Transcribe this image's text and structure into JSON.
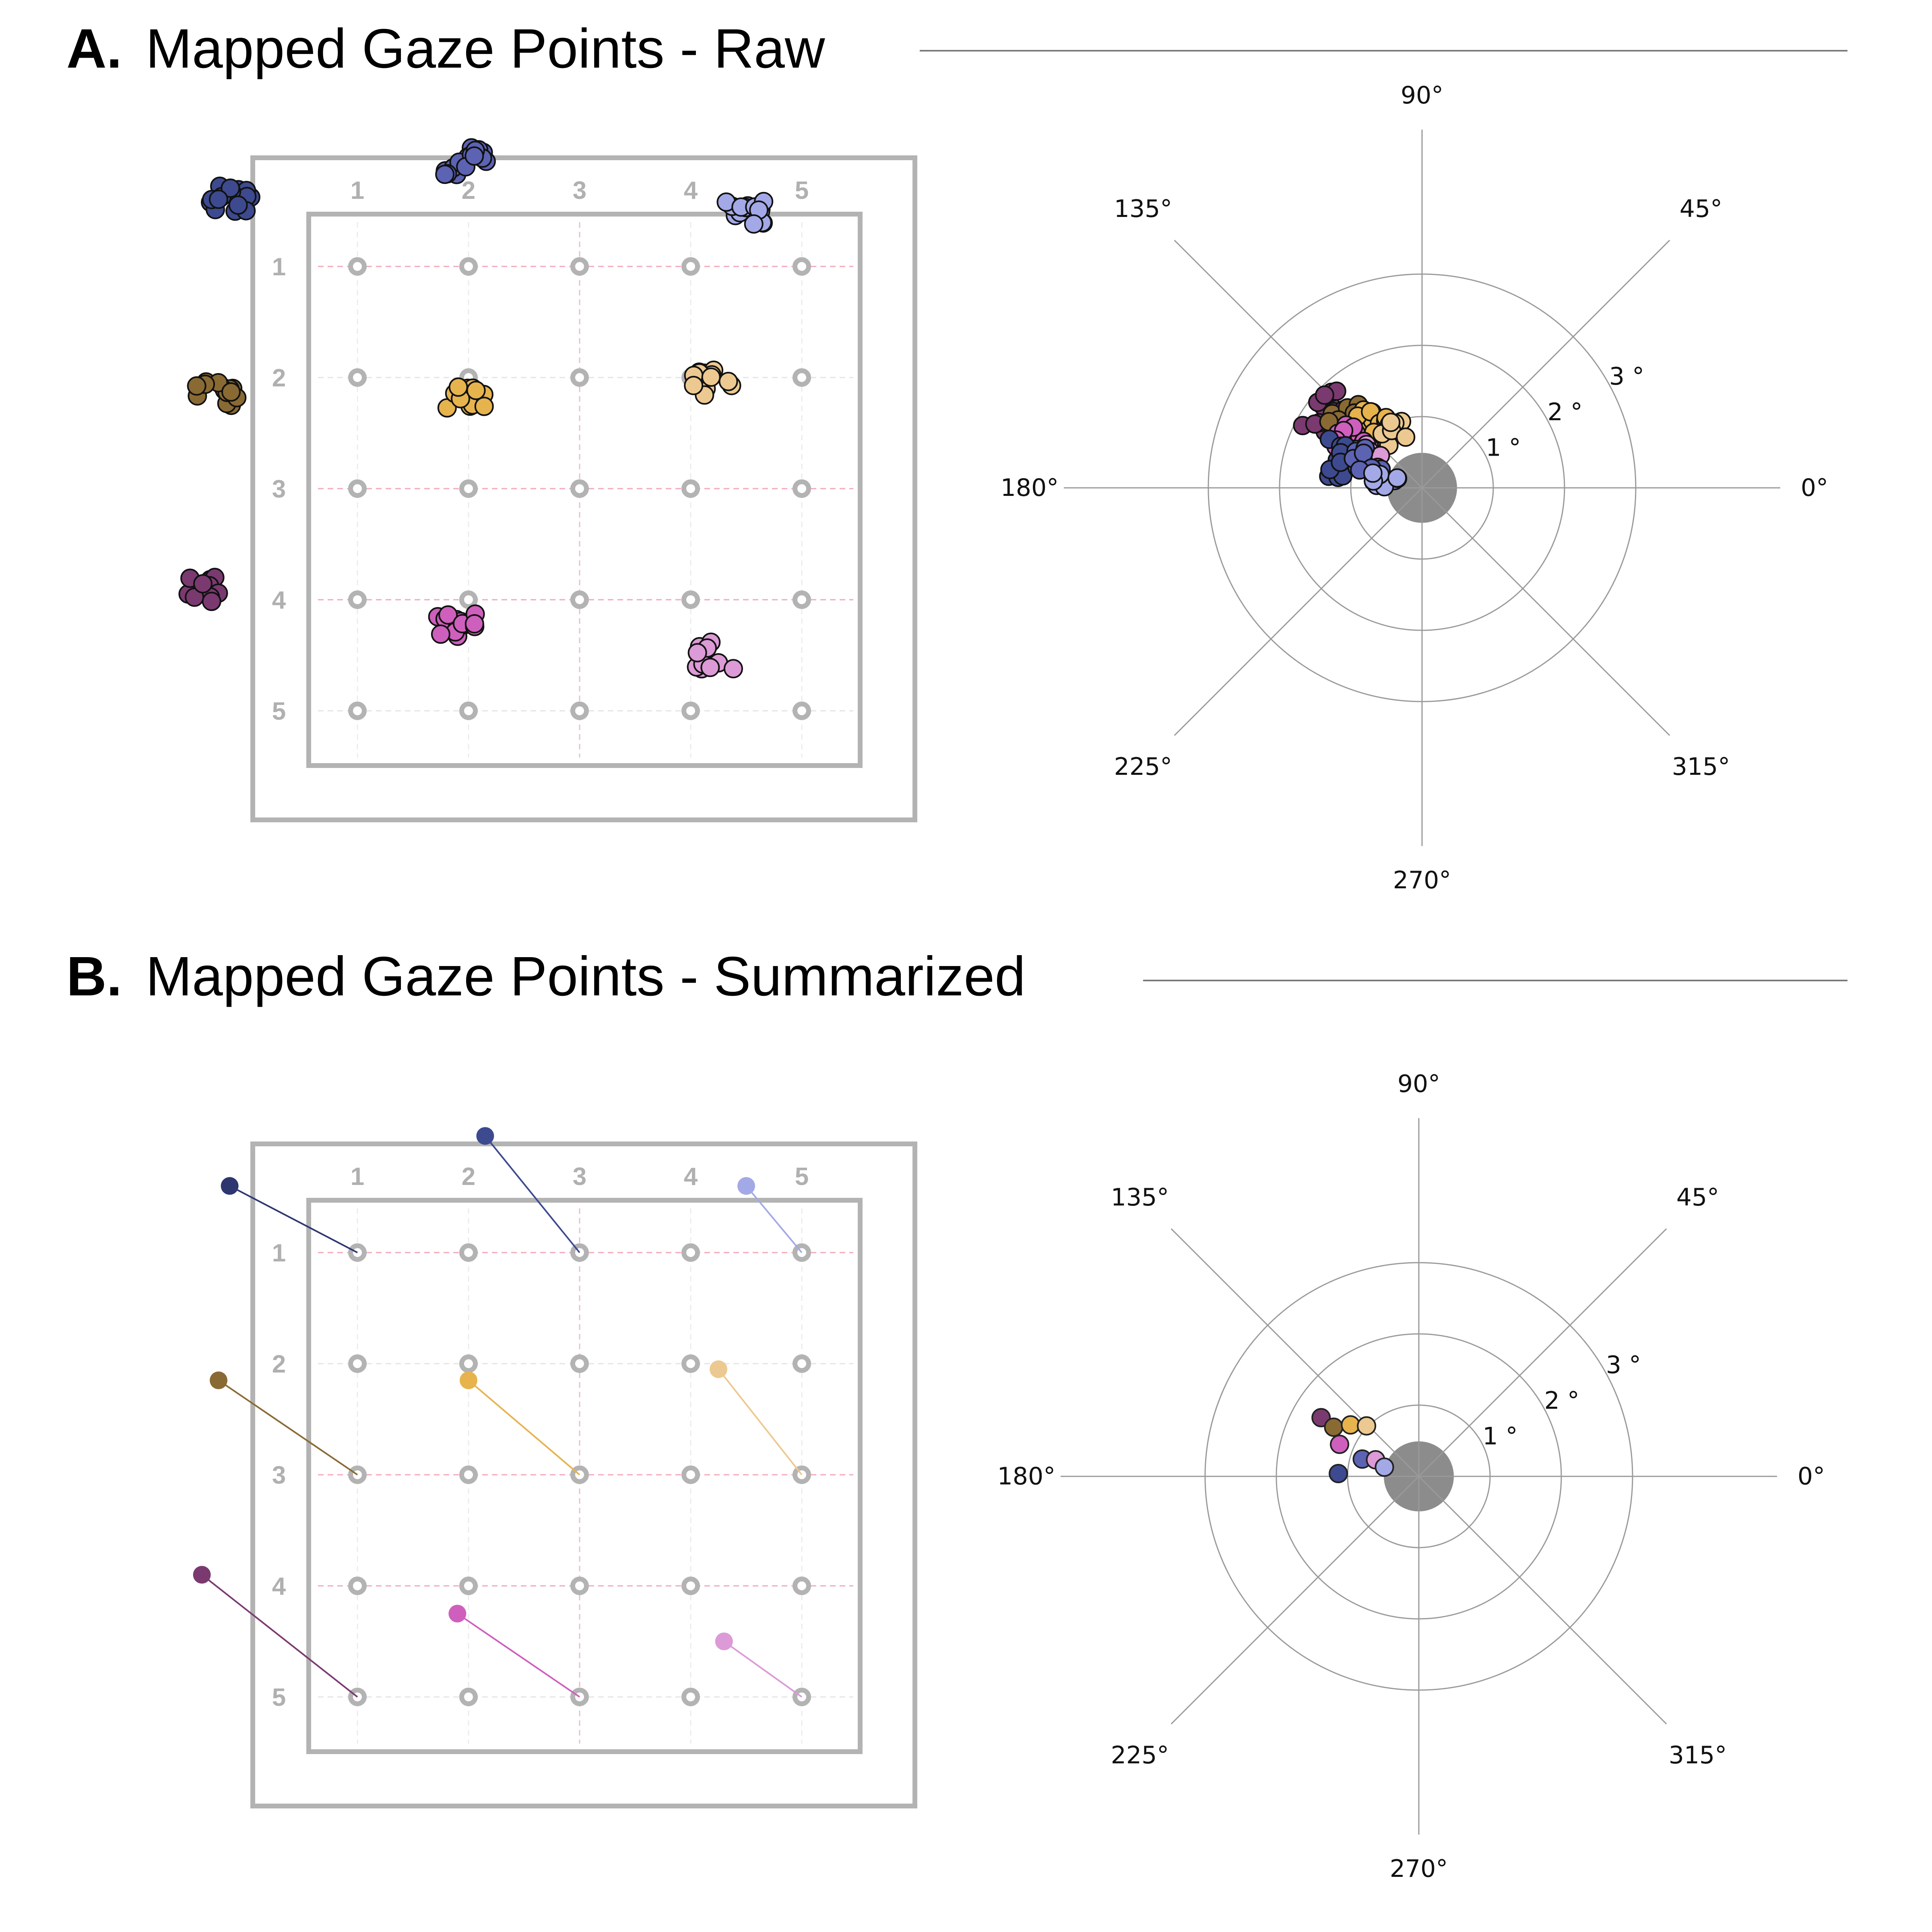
{
  "panels": [
    {
      "letter": "A.",
      "title": "Mapped Gaze Points - Raw",
      "mode": "raw"
    },
    {
      "letter": "B.",
      "title": "Mapped Gaze Points - Summarized",
      "mode": "summarized"
    }
  ],
  "grid": {
    "column_labels": [
      "1",
      "2",
      "3",
      "4",
      "5"
    ],
    "row_labels": [
      "1",
      "2",
      "3",
      "4",
      "5"
    ]
  },
  "polar": {
    "angle_labels": [
      "0°",
      "45°",
      "90°",
      "135°",
      "180°",
      "225°",
      "270°",
      "315°"
    ],
    "angles_deg": [
      0,
      45,
      90,
      135,
      180,
      225,
      270,
      315
    ],
    "ring_labels": [
      "1 °",
      "2 °",
      "3 °"
    ],
    "ring_values": [
      1,
      2,
      3
    ]
  },
  "colors": {
    "frame": "#b3b3b3",
    "target": "#b3b3b3",
    "guide": "#f4a7b9",
    "polar_center": "#8c8c8c",
    "polar_axis": "#9a9a9a"
  },
  "chart_data": [
    {
      "type": "scatter",
      "panel": "A",
      "title": "Mapped Gaze Points - Raw",
      "grid_units": "target grid (columns 1-5, rows 1-5)",
      "xlim": [
        0.05,
        5.55
      ],
      "ylim": [
        0.1,
        5.5
      ],
      "clusters": [
        {
          "color": "#3d4a8f",
          "target": [
            1,
            1
          ],
          "center": [
            -0.15,
            0.4
          ],
          "n": 16
        },
        {
          "color": "#5c63b3",
          "target": [
            3,
            1
          ],
          "center": [
            1.98,
            0.05
          ],
          "n": 16
        },
        {
          "color": "#a3a9e6",
          "target": [
            5,
            1
          ],
          "center": [
            4.5,
            0.5
          ],
          "n": 16
        },
        {
          "color": "#8a6a33",
          "target": [
            1,
            3
          ],
          "center": [
            -0.28,
            2.15
          ],
          "n": 14
        },
        {
          "color": "#e6b34d",
          "target": [
            3,
            3
          ],
          "center": [
            2.0,
            2.15
          ],
          "n": 14
        },
        {
          "color": "#ecc990",
          "target": [
            5,
            3
          ],
          "center": [
            4.2,
            2.05
          ],
          "n": 14
        },
        {
          "color": "#7a3a70",
          "target": [
            1,
            5
          ],
          "center": [
            -0.45,
            3.9
          ],
          "n": 14
        },
        {
          "color": "#cf5fbd",
          "target": [
            3,
            5
          ],
          "center": [
            1.92,
            4.25
          ],
          "n": 14
        },
        {
          "color": "#dc9ad6",
          "target": [
            5,
            5
          ],
          "center": [
            4.25,
            4.5
          ],
          "n": 14
        }
      ],
      "polar_clusters": [
        {
          "color": "#7a3a70",
          "angle_deg": 142,
          "ecc_deg": 1.7
        },
        {
          "color": "#8a6a33",
          "angle_deg": 138,
          "ecc_deg": 1.45
        },
        {
          "color": "#e6b34d",
          "angle_deg": 128,
          "ecc_deg": 1.15
        },
        {
          "color": "#ecc990",
          "angle_deg": 118,
          "ecc_deg": 0.95
        },
        {
          "color": "#cf5fbd",
          "angle_deg": 145,
          "ecc_deg": 1.2
        },
        {
          "color": "#dc9ad6",
          "angle_deg": 150,
          "ecc_deg": 0.9
        },
        {
          "color": "#3d4a8f",
          "angle_deg": 162,
          "ecc_deg": 1.25
        },
        {
          "color": "#5c63b3",
          "angle_deg": 155,
          "ecc_deg": 0.85
        },
        {
          "color": "#a3a9e6",
          "angle_deg": 168,
          "ecc_deg": 0.55
        }
      ]
    },
    {
      "type": "scatter",
      "panel": "B",
      "title": "Mapped Gaze Points - Summarized",
      "grid_units": "target grid (columns 1-5, rows 1-5)",
      "points": [
        {
          "color": "#2e3670",
          "x": -0.15,
          "y": 0.4,
          "target": [
            1,
            1
          ]
        },
        {
          "color": "#3d4a8f",
          "x": 2.15,
          "y": -0.05,
          "target": [
            3,
            1
          ]
        },
        {
          "color": "#a3a9e6",
          "x": 4.5,
          "y": 0.4,
          "target": [
            5,
            1
          ]
        },
        {
          "color": "#8a6a33",
          "x": -0.25,
          "y": 2.15,
          "target": [
            1,
            3
          ]
        },
        {
          "color": "#e6b34d",
          "x": 2.0,
          "y": 2.15,
          "target": [
            3,
            3
          ]
        },
        {
          "color": "#ecc990",
          "x": 4.25,
          "y": 2.05,
          "target": [
            5,
            3
          ]
        },
        {
          "color": "#7a3a70",
          "x": -0.4,
          "y": 3.9,
          "target": [
            1,
            5
          ]
        },
        {
          "color": "#cf5fbd",
          "x": 1.9,
          "y": 4.25,
          "target": [
            3,
            5
          ]
        },
        {
          "color": "#dc9ad6",
          "x": 4.3,
          "y": 4.5,
          "target": [
            5,
            5
          ]
        }
      ],
      "polar_points": [
        {
          "color": "#7a3a70",
          "angle_deg": 149,
          "ecc_deg": 1.6
        },
        {
          "color": "#8a6a33",
          "angle_deg": 150,
          "ecc_deg": 1.38
        },
        {
          "color": "#e6b34d",
          "angle_deg": 143,
          "ecc_deg": 1.2
        },
        {
          "color": "#ecc990",
          "angle_deg": 136,
          "ecc_deg": 1.02
        },
        {
          "color": "#cf5fbd",
          "angle_deg": 158,
          "ecc_deg": 1.2
        },
        {
          "color": "#3d4a8f",
          "angle_deg": 178,
          "ecc_deg": 1.13
        },
        {
          "color": "#5c63b3",
          "angle_deg": 163,
          "ecc_deg": 0.83
        },
        {
          "color": "#dc9ad6",
          "angle_deg": 159,
          "ecc_deg": 0.65
        },
        {
          "color": "#a3a9e6",
          "angle_deg": 165,
          "ecc_deg": 0.5
        }
      ]
    }
  ]
}
